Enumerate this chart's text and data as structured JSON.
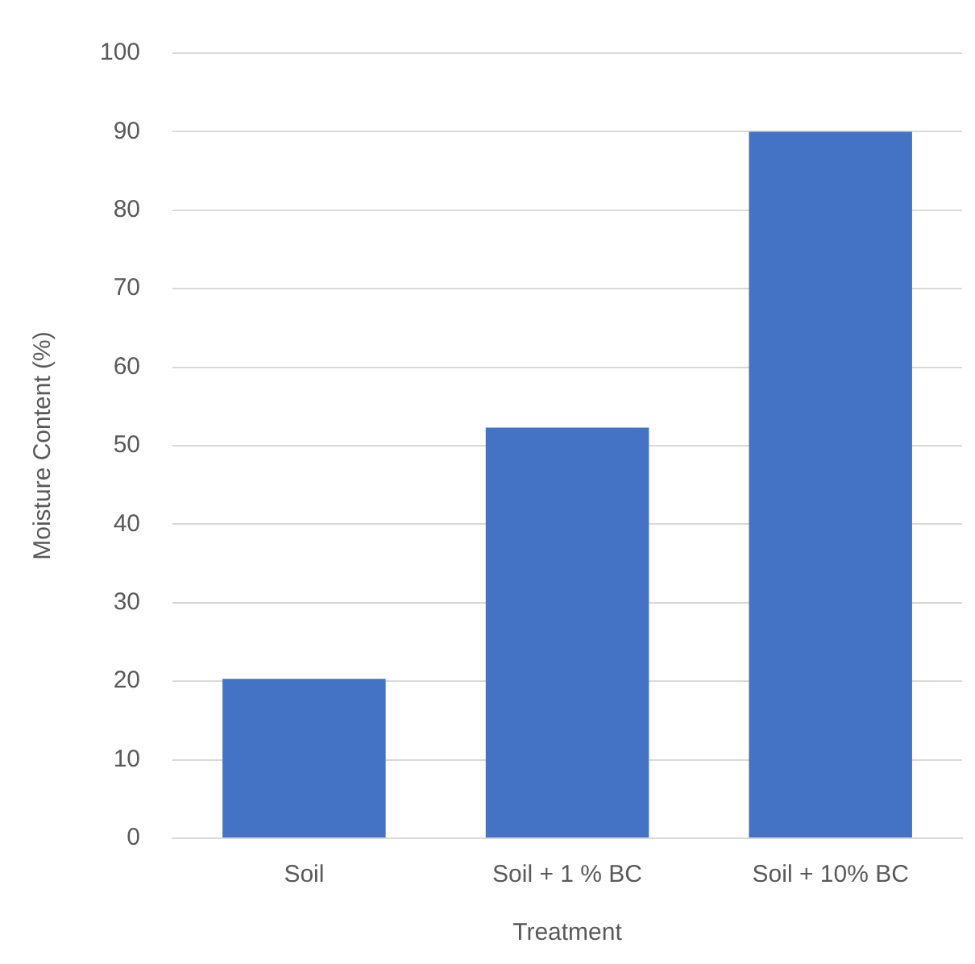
{
  "chart_data": {
    "type": "bar",
    "xlabel": "Treatment",
    "ylabel": "Moisture Content (%)",
    "categories": [
      "Soil",
      "Soil + 1 % BC",
      "Soil + 10% BC"
    ],
    "values": [
      20.3,
      52.3,
      90
    ],
    "color": "#4472c4",
    "ylim": [
      0,
      100
    ],
    "yticks": [
      0,
      10,
      20,
      30,
      40,
      50,
      60,
      70,
      80,
      90,
      100
    ],
    "grid": "y",
    "legend": false
  }
}
